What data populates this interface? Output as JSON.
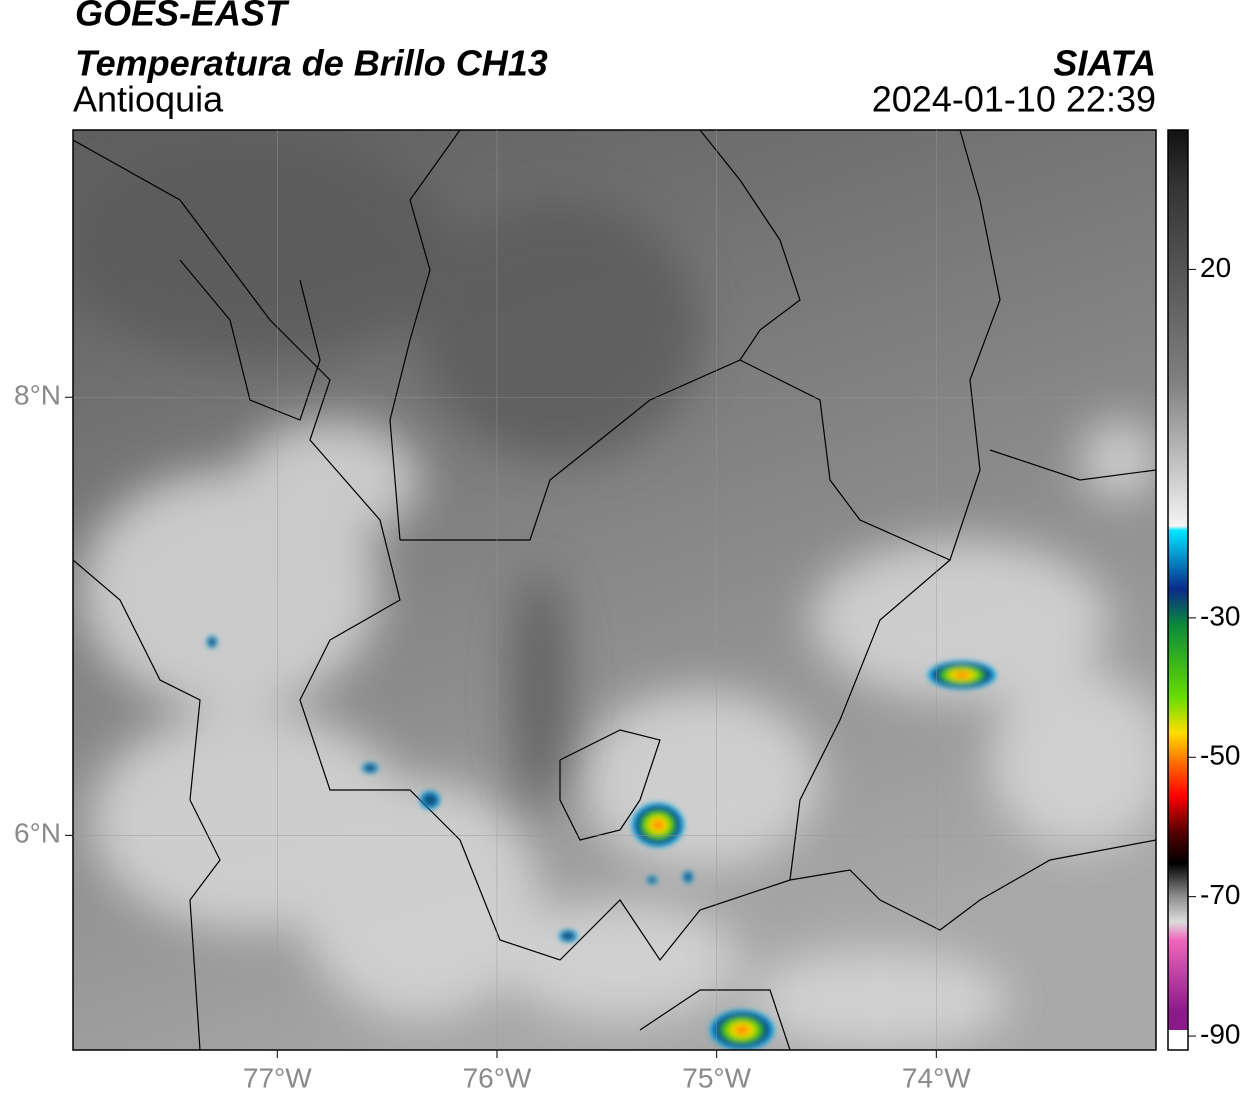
{
  "header": {
    "title": "GOES-EAST",
    "subtitle": "Temperatura de Brillo CH13",
    "region": "Antioquia",
    "source": "SIATA",
    "datetime": "2024-01-10 22:39"
  },
  "map": {
    "xlim": [
      -77.93,
      -73.0
    ],
    "ylim": [
      5.02,
      9.22
    ],
    "xticks": [
      {
        "value": -77,
        "label": "77°W"
      },
      {
        "value": -76,
        "label": "76°W"
      },
      {
        "value": -75,
        "label": "75°W"
      },
      {
        "value": -74,
        "label": "74°W"
      }
    ],
    "yticks": [
      {
        "value": 6,
        "label": "6°N"
      },
      {
        "value": 8,
        "label": "8°N"
      }
    ]
  },
  "colorbar": {
    "clim": [
      -92,
      40
    ],
    "ticks": [
      20,
      -30,
      -50,
      -70,
      -90
    ]
  }
}
